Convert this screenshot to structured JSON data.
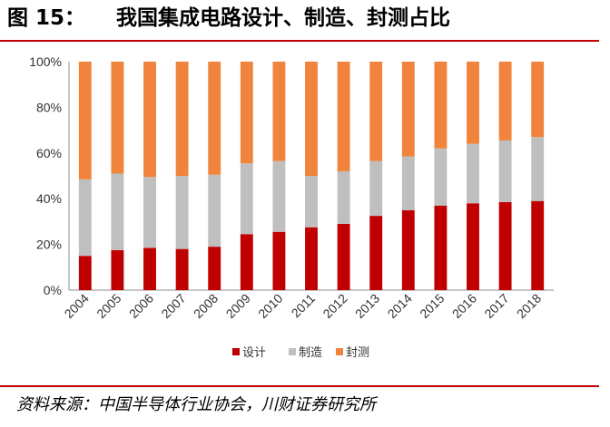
{
  "figure": {
    "label": "图 15：",
    "title": "我国集成电路设计、制造、封测占比"
  },
  "source": "资料来源：中国半导体行业协会，川财证券研究所",
  "colors": {
    "design": "#c00000",
    "manufacturing": "#bfbfbf",
    "packaging": "#f0843c",
    "accent_rule": "#c00000"
  },
  "chart_data": {
    "type": "bar",
    "stacked": true,
    "categories": [
      "2004",
      "2005",
      "2006",
      "2007",
      "2008",
      "2009",
      "2010",
      "2011",
      "2012",
      "2013",
      "2014",
      "2015",
      "2016",
      "2017",
      "2018"
    ],
    "series": [
      {
        "name": "设计",
        "color": "#c00000",
        "values": [
          15,
          17.5,
          18.5,
          18,
          19,
          24.5,
          25.5,
          27.5,
          29,
          32.5,
          35,
          37,
          38,
          38.5,
          39
        ]
      },
      {
        "name": "制造",
        "color": "#bfbfbf",
        "values": [
          33.5,
          33.5,
          31,
          32,
          31.5,
          31,
          31,
          22.5,
          23,
          24,
          23.5,
          25,
          26,
          27,
          28
        ]
      },
      {
        "name": "封测",
        "color": "#f0843c",
        "values": [
          51.5,
          49,
          50.5,
          50,
          49.5,
          44.5,
          43.5,
          50,
          48,
          43.5,
          41.5,
          38,
          36,
          34.5,
          33
        ]
      }
    ],
    "ylim": [
      0,
      100
    ],
    "yticks": [
      "0%",
      "20%",
      "40%",
      "60%",
      "80%",
      "100%"
    ],
    "xlabel": "",
    "ylabel": "",
    "legend": [
      "设计",
      "制造",
      "封测"
    ],
    "legend_position": "bottom-center",
    "grid": false
  }
}
